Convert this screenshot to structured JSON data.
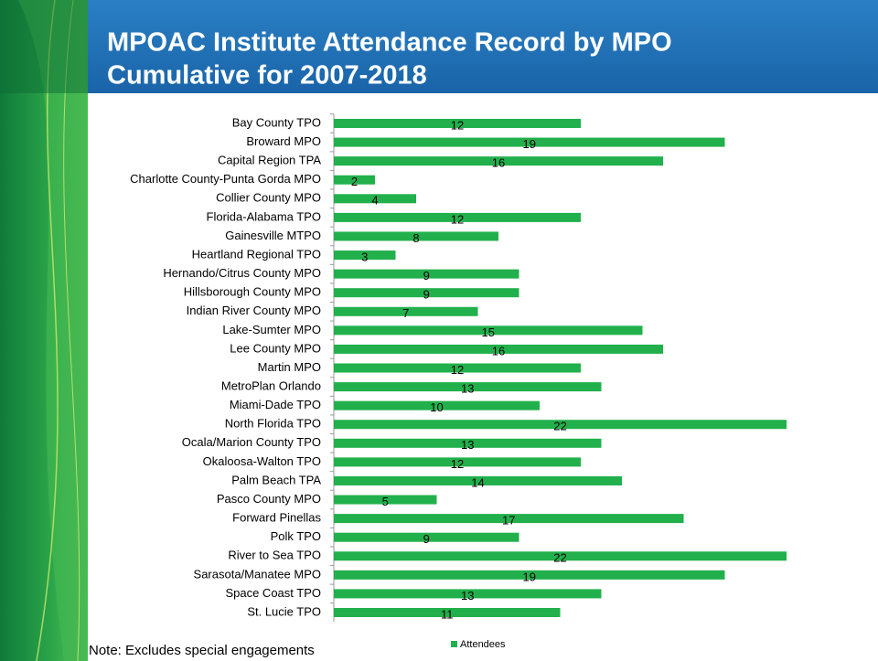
{
  "chart_data": {
    "type": "bar",
    "orientation": "horizontal",
    "title": "MPOAC Institute Attendance Record by MPO",
    "subtitle": "Cumulative for 2007-2018",
    "annotation": "Note: Excludes special engagements",
    "categories": [
      "Bay County TPO",
      "Broward MPO",
      "Capital Region TPA",
      "Charlotte County-Punta Gorda MPO",
      "Collier County MPO",
      "Florida-Alabama TPO",
      "Gainesville MTPO",
      "Heartland Regional TPO",
      "Hernando/Citrus County MPO",
      "Hillsborough County MPO",
      "Indian River County MPO",
      "Lake-Sumter MPO",
      "Lee County MPO",
      "Martin MPO",
      "MetroPlan Orlando",
      "Miami-Dade TPO",
      "North Florida TPO",
      "Ocala/Marion County TPO",
      "Okaloosa-Walton TPO",
      "Palm Beach TPA",
      "Pasco County MPO",
      "Forward Pinellas",
      "Polk TPO",
      "River to Sea TPO",
      "Sarasota/Manatee MPO",
      "Space Coast TPO",
      "St. Lucie TPO"
    ],
    "series": [
      {
        "name": "Attendees",
        "color": "#21b04b",
        "values": [
          12,
          19,
          16,
          2,
          4,
          12,
          8,
          3,
          9,
          9,
          7,
          15,
          16,
          12,
          13,
          10,
          22,
          13,
          12,
          14,
          5,
          17,
          9,
          22,
          19,
          13,
          11
        ]
      }
    ],
    "legend": "bottom"
  }
}
